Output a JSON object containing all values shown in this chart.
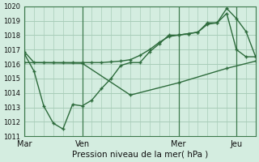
{
  "title": "Pression niveau de la mer( hPa )",
  "bg_color": "#d4ede0",
  "grid_color": "#a8ccb8",
  "line_color": "#2d6b3c",
  "ylim": [
    1011,
    1020
  ],
  "yticks": [
    1011,
    1012,
    1013,
    1014,
    1015,
    1016,
    1017,
    1018,
    1019,
    1020
  ],
  "day_labels": [
    "Mar",
    "Ven",
    "Mer",
    "Jeu"
  ],
  "day_positions": [
    0,
    30,
    80,
    110
  ],
  "xlim": [
    0,
    120
  ],
  "series1_x": [
    0,
    5,
    10,
    15,
    20,
    25,
    30,
    35,
    40,
    45,
    50,
    55,
    60,
    65,
    70,
    75,
    80,
    85,
    90,
    95,
    100,
    105,
    110,
    115,
    120
  ],
  "series1_y": [
    1016.85,
    1016.1,
    1016.1,
    1016.1,
    1016.1,
    1016.1,
    1016.1,
    1016.1,
    1016.1,
    1016.15,
    1016.2,
    1016.3,
    1016.6,
    1017.0,
    1017.5,
    1017.9,
    1018.0,
    1018.1,
    1018.2,
    1018.75,
    1018.85,
    1019.85,
    1019.15,
    1018.25,
    1016.5
  ],
  "series2_x": [
    0,
    5,
    10,
    15,
    20,
    25,
    30,
    35,
    40,
    45,
    50,
    55,
    60,
    65,
    70,
    75,
    80,
    85,
    90,
    95,
    100,
    105,
    110,
    115,
    120
  ],
  "series2_y": [
    1016.7,
    1015.5,
    1013.1,
    1011.9,
    1011.5,
    1013.2,
    1013.1,
    1013.5,
    1014.3,
    1015.0,
    1015.9,
    1016.1,
    1016.1,
    1016.85,
    1017.4,
    1018.0,
    1018.0,
    1018.1,
    1018.2,
    1018.85,
    1018.85,
    1019.5,
    1017.0,
    1016.5,
    1016.5
  ],
  "series3_x": [
    0,
    30,
    55,
    80,
    105,
    120
  ],
  "series3_y": [
    1016.1,
    1016.05,
    1013.85,
    1014.7,
    1015.7,
    1016.2
  ]
}
